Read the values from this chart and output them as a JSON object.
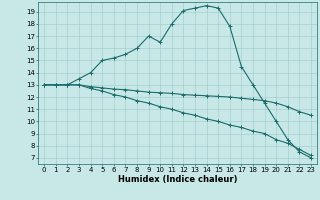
{
  "xlabel": "Humidex (Indice chaleur)",
  "background_color": "#c8e8e8",
  "grid_color": "#a0c8c8",
  "line_color": "#1a6b6b",
  "xlim": [
    -0.5,
    23.5
  ],
  "ylim": [
    6.5,
    19.8
  ],
  "xticks": [
    0,
    1,
    2,
    3,
    4,
    5,
    6,
    7,
    8,
    9,
    10,
    11,
    12,
    13,
    14,
    15,
    16,
    17,
    18,
    19,
    20,
    21,
    22,
    23
  ],
  "yticks": [
    7,
    8,
    9,
    10,
    11,
    12,
    13,
    14,
    15,
    16,
    17,
    18,
    19
  ],
  "line1_x": [
    0,
    1,
    2,
    3,
    4,
    5,
    6,
    7,
    8,
    9,
    10,
    11,
    12,
    13,
    14,
    15,
    16,
    17,
    18,
    19,
    20,
    21,
    22,
    23
  ],
  "line1_y": [
    13,
    13,
    13,
    13.5,
    14,
    15,
    15.2,
    15.5,
    16,
    17,
    16.5,
    18,
    19.1,
    19.3,
    19.5,
    19.3,
    17.8,
    14.5,
    13,
    11.5,
    10,
    8.5,
    7.5,
    7
  ],
  "line2_x": [
    0,
    1,
    2,
    3,
    4,
    5,
    6,
    7,
    8,
    9,
    10,
    11,
    12,
    13,
    14,
    15,
    16,
    17,
    18,
    19,
    20,
    21,
    22,
    23
  ],
  "line2_y": [
    13,
    13,
    13,
    13,
    12.85,
    12.75,
    12.65,
    12.6,
    12.5,
    12.4,
    12.35,
    12.3,
    12.2,
    12.15,
    12.1,
    12.05,
    12.0,
    11.9,
    11.8,
    11.7,
    11.5,
    11.2,
    10.8,
    10.5
  ],
  "line3_x": [
    0,
    1,
    2,
    3,
    4,
    5,
    6,
    7,
    8,
    9,
    10,
    11,
    12,
    13,
    14,
    15,
    16,
    17,
    18,
    19,
    20,
    21,
    22,
    23
  ],
  "line3_y": [
    13,
    13,
    13,
    13,
    12.7,
    12.5,
    12.2,
    12.0,
    11.7,
    11.5,
    11.2,
    11.0,
    10.7,
    10.5,
    10.2,
    10.0,
    9.7,
    9.5,
    9.2,
    9.0,
    8.5,
    8.2,
    7.7,
    7.2
  ],
  "marker": "+",
  "markersize": 3,
  "markeredgewidth": 0.7,
  "linewidth": 0.8,
  "xlabel_fontsize": 6,
  "tick_fontsize": 5
}
